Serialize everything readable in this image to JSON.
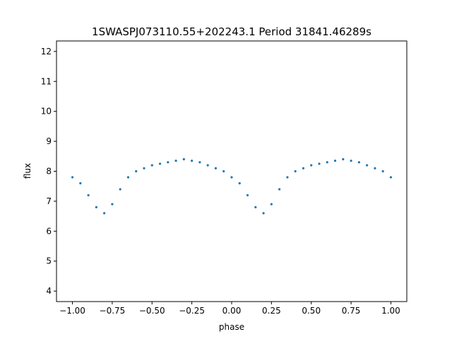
{
  "chart_data": {
    "type": "scatter",
    "title": "1SWASPJ073110.55+202243.1 Period 31841.46289s",
    "xlabel": "phase",
    "ylabel": "flux",
    "xlim": [
      -1.1,
      1.1
    ],
    "ylim": [
      3.65,
      12.35
    ],
    "x_ticks": [
      -1.0,
      -0.75,
      -0.5,
      -0.25,
      0.0,
      0.25,
      0.5,
      0.75,
      1.0
    ],
    "x_tick_labels": [
      "−1.00",
      "−0.75",
      "−0.50",
      "−0.25",
      "0.00",
      "0.25",
      "0.50",
      "0.75",
      "1.00"
    ],
    "y_ticks": [
      4,
      5,
      6,
      7,
      8,
      9,
      10,
      11,
      12
    ],
    "y_tick_labels": [
      "4",
      "5",
      "6",
      "7",
      "8",
      "9",
      "10",
      "11",
      "12"
    ],
    "grid": false,
    "marker_color": "#1f77b4",
    "series": [
      {
        "x": [
          -1.0,
          -0.95,
          -0.9,
          -0.85,
          -0.8,
          -0.75,
          -0.7,
          -0.65,
          -0.6,
          -0.55,
          -0.5,
          -0.45,
          -0.4,
          -0.35,
          -0.3,
          -0.25,
          -0.2,
          -0.15,
          -0.1,
          -0.05,
          0.0,
          0.05,
          0.1,
          0.15,
          0.2,
          0.25,
          0.3,
          0.35,
          0.4,
          0.45,
          0.5,
          0.55,
          0.6,
          0.65,
          0.7,
          0.75,
          0.8,
          0.85,
          0.9,
          0.95,
          1.0
        ],
        "y": [
          7.8,
          7.6,
          7.2,
          6.8,
          6.6,
          6.9,
          7.4,
          7.8,
          8.0,
          8.1,
          8.2,
          8.25,
          8.3,
          8.35,
          8.4,
          8.35,
          8.3,
          8.2,
          8.1,
          8.0,
          7.8,
          7.6,
          7.2,
          6.8,
          6.6,
          6.9,
          7.4,
          7.8,
          8.0,
          8.1,
          8.2,
          8.25,
          8.3,
          8.35,
          8.4,
          8.35,
          8.3,
          8.2,
          8.1,
          8.0,
          7.8
        ]
      }
    ]
  }
}
